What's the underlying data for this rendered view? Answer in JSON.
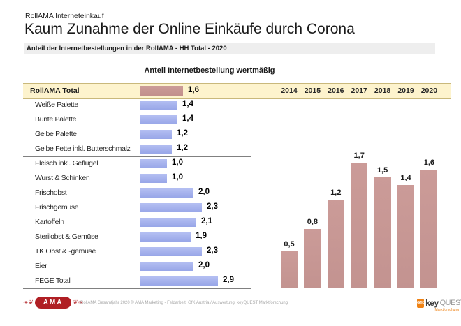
{
  "header": {
    "kicker": "RollAMA Interneteinkauf",
    "title": "Kaum Zunahme der Online Einkäufe durch Corona",
    "subtitle": "Anteil der Internetbestellungen in der RollAMA - HH Total - 2020"
  },
  "chart_data": [
    {
      "type": "bar",
      "orientation": "horizontal",
      "title": "Anteil Internetbestellung wertmäßig",
      "categories": [
        "RollAMA Total",
        "Weiße Palette",
        "Bunte Palette",
        "Gelbe Palette",
        "Gelbe Fette inkl. Butterschmalz",
        "Fleisch inkl. Geflügel",
        "Wurst & Schinken",
        "Frischobst",
        "Frischgemüse",
        "Kartoffeln",
        "Sterilobst & Gemüse",
        "TK Obst & -gemüse",
        "Eier",
        "FEGE Total"
      ],
      "values": [
        1.6,
        1.4,
        1.4,
        1.2,
        1.2,
        1.0,
        1.0,
        2.0,
        2.3,
        2.1,
        1.9,
        2.3,
        2.0,
        2.9
      ],
      "value_labels": [
        "1,6",
        "1,4",
        "1,4",
        "1,2",
        "1,2",
        "1,0",
        "1,0",
        "2,0",
        "2,3",
        "2,1",
        "1,9",
        "2,3",
        "2,0",
        "2,9"
      ],
      "highlight_index": 0,
      "group_breaks_after": [
        4,
        6,
        9
      ],
      "xlim": [
        0,
        4.6
      ],
      "grid": false,
      "legend": "none"
    },
    {
      "type": "bar",
      "orientation": "vertical",
      "categories": [
        "2014",
        "2015",
        "2016",
        "2017",
        "2018",
        "2019",
        "2020"
      ],
      "values": [
        0.5,
        0.8,
        1.2,
        1.7,
        1.5,
        1.4,
        1.6
      ],
      "value_labels": [
        "0,5",
        "0,8",
        "1,2",
        "1,7",
        "1,5",
        "1,4",
        "1,6"
      ],
      "ylim": [
        0,
        2.6
      ],
      "grid": false,
      "legend": "none"
    }
  ],
  "colors": {
    "highlight_bar": "#c69390",
    "category_bar": "#9daceb",
    "band_background": "#fdf3cd",
    "band_border": "#c9b87b",
    "subtitle_background": "#eeeeee",
    "separator": "#808080",
    "ama_red": "#b01f24",
    "gfk_orange": "#ef8214"
  },
  "footer": {
    "ama_logo_text": "AMA",
    "credit": "RollAMA Gesamtjahr 2020 © AMA Marketing - Feldarbeit: GfK Austria / Auswertung: keyQUEST Marktforschung",
    "gfk_logo_text": "GfK",
    "keyquest_bold": "key",
    "keyquest_light": "QUEST",
    "keyquest_sub": "Marktforschung"
  }
}
